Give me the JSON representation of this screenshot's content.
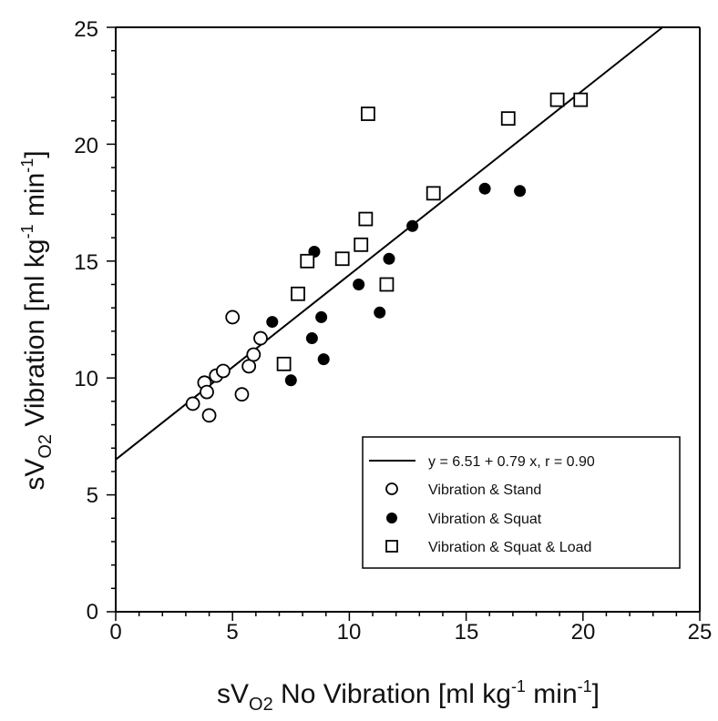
{
  "chart_data": {
    "type": "scatter",
    "title": "",
    "xlabel": {
      "main": "sV",
      "sub": "O2",
      "rest": " No Vibration [ml kg",
      "sup1": "-1",
      "mid": " min",
      "sup2": "-1",
      "end": "]"
    },
    "ylabel": {
      "main": "sV",
      "sub": "O2",
      "rest": " Vibration [ml kg",
      "sup1": "-1",
      "mid": " min",
      "sup2": "-1",
      "end": "]"
    },
    "xlim": [
      0,
      25
    ],
    "ylim": [
      0,
      25
    ],
    "xticks": [
      "0",
      "5",
      "10",
      "15",
      "20",
      "25"
    ],
    "yticks": [
      "0",
      "5",
      "10",
      "15",
      "20",
      "25"
    ],
    "grid": false,
    "legend_position": "bottom-right",
    "fit_line": {
      "intercept": 6.51,
      "slope": 0.79,
      "r": 0.9,
      "label": "y = 6.51 + 0.79 x, r = 0.90"
    },
    "series": [
      {
        "name": "Vibration & Stand",
        "marker": "open-circle",
        "points": [
          [
            3.3,
            8.9
          ],
          [
            3.8,
            9.8
          ],
          [
            3.9,
            9.4
          ],
          [
            4.0,
            8.4
          ],
          [
            4.3,
            10.1
          ],
          [
            4.6,
            10.3
          ],
          [
            5.0,
            12.6
          ],
          [
            5.4,
            9.3
          ],
          [
            5.7,
            10.5
          ],
          [
            5.9,
            11.0
          ],
          [
            6.2,
            11.7
          ]
        ]
      },
      {
        "name": "Vibration & Squat",
        "marker": "filled-circle",
        "points": [
          [
            6.7,
            12.4
          ],
          [
            7.5,
            9.9
          ],
          [
            8.4,
            11.7
          ],
          [
            8.5,
            15.4
          ],
          [
            8.8,
            12.6
          ],
          [
            8.9,
            10.8
          ],
          [
            10.4,
            14.0
          ],
          [
            11.3,
            12.8
          ],
          [
            11.7,
            15.1
          ],
          [
            12.7,
            16.5
          ],
          [
            15.8,
            18.1
          ],
          [
            17.3,
            18.0
          ]
        ]
      },
      {
        "name": "Vibration & Squat & Load",
        "marker": "open-square",
        "points": [
          [
            7.2,
            10.6
          ],
          [
            7.8,
            13.6
          ],
          [
            8.2,
            15.0
          ],
          [
            9.7,
            15.1
          ],
          [
            10.5,
            15.7
          ],
          [
            10.7,
            16.8
          ],
          [
            10.8,
            21.3
          ],
          [
            11.6,
            14.0
          ],
          [
            13.6,
            17.9
          ],
          [
            16.8,
            21.1
          ],
          [
            18.9,
            21.9
          ],
          [
            19.9,
            21.9
          ]
        ]
      }
    ]
  }
}
